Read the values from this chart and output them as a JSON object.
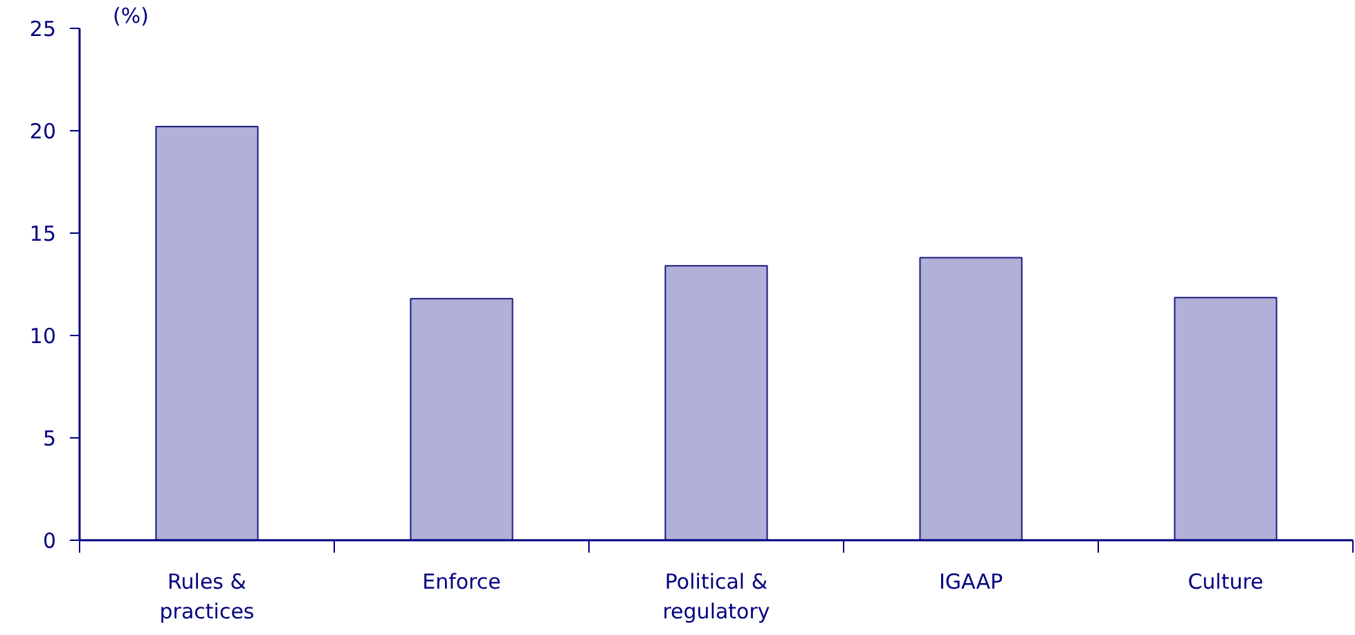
{
  "chart_data": {
    "type": "bar",
    "ylabel": "(%)",
    "categories": [
      "Rules & practices",
      "Enforce",
      "Political & regulatory",
      "IGAAP",
      "Culture"
    ],
    "values": [
      20.2,
      11.8,
      13.4,
      13.8,
      11.85
    ],
    "color": "#b0b0d8",
    "ylim": [
      0,
      25
    ],
    "yticks": [
      0,
      5,
      10,
      15,
      20,
      25
    ],
    "grid": false
  }
}
